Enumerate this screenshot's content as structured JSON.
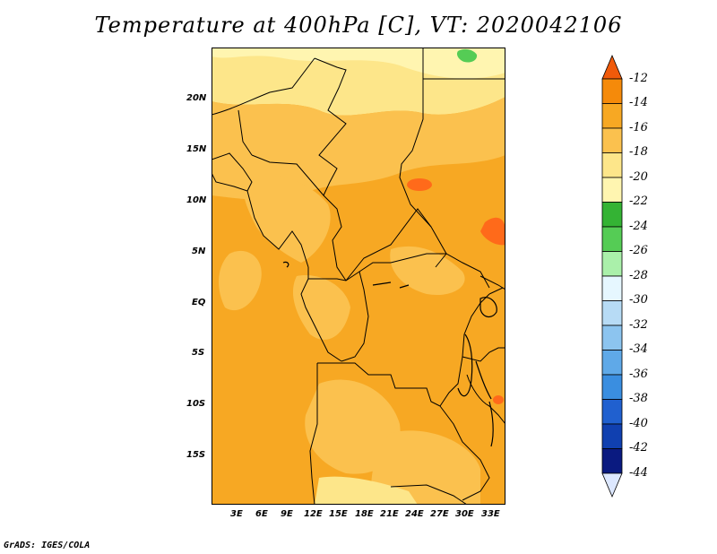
{
  "title": "Temperature at 400hPa [C], VT: 2020042106",
  "credit": "GrADS: IGES/COLA",
  "map": {
    "region": "Central Africa",
    "lat_labels": [
      "20N",
      "15N",
      "10N",
      "5N",
      "EQ",
      "5S",
      "10S",
      "15S"
    ],
    "lon_labels": [
      "3E",
      "6E",
      "9E",
      "12E",
      "15E",
      "18E",
      "21E",
      "24E",
      "27E",
      "30E",
      "33E"
    ],
    "colors": {
      "light_yellow": "#fff5a6",
      "pale": "#fde68a",
      "light_orange": "#fbc14e",
      "orange": "#f7a823",
      "deep_orange": "#ff6a1a",
      "green": "#55cc55",
      "border": "#000000"
    }
  },
  "colorbar": {
    "labels": [
      "-12",
      "-14",
      "-16",
      "-18",
      "-20",
      "-22",
      "-24",
      "-26",
      "-28",
      "-30",
      "-32",
      "-34",
      "-36",
      "-38",
      "-40",
      "-42",
      "-44"
    ],
    "colors": [
      "#f05a0a",
      "#f58a0a",
      "#f7a823",
      "#fbc14e",
      "#fde68a",
      "#fff5b0",
      "#34b334",
      "#55cc55",
      "#aaf0aa",
      "#e6f7ff",
      "#b7dbf5",
      "#8cc4ef",
      "#5fa9e8",
      "#3a8ee0",
      "#2060cf",
      "#1040b0",
      "#0a1a80",
      "#dde8ff"
    ]
  }
}
